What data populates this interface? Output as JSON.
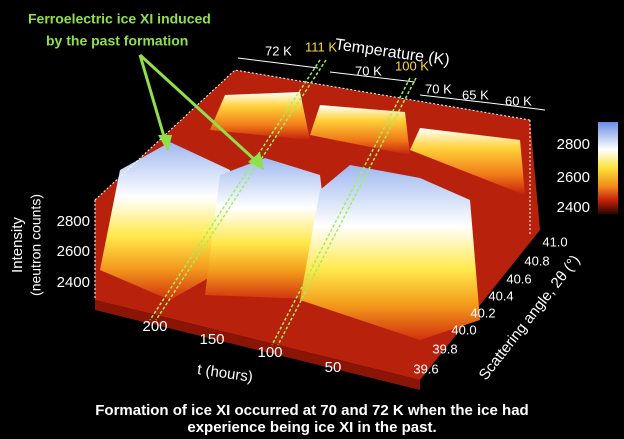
{
  "annotation": [
    "Ferroelectric ice XI induced",
    "by the past formation"
  ],
  "temperature": {
    "title": "Temperature (K)",
    "segments": [
      "72 K",
      "111 K",
      "70 K",
      "100 K",
      "70 K",
      "65 K",
      "60 K"
    ]
  },
  "colorbar": {
    "ticks": [
      2800,
      2600,
      2400
    ]
  },
  "intensity": {
    "title": "Intensity",
    "unit": "(neutron counts)",
    "ticks": [
      2800,
      2600,
      2400
    ]
  },
  "time": {
    "title": "t (hours)",
    "ticks": [
      200,
      150,
      100,
      50
    ]
  },
  "angle": {
    "title": "Scattering angle, 2θ (°)",
    "ticks": [
      "41.0",
      "40.8",
      "40.6",
      "40.4",
      "40.2",
      "40.0",
      "39.8",
      "39.6"
    ]
  },
  "caption": [
    "Formation of ice XI occurred at 70 and 72 K when the ice had",
    "experience being ice XI in the past."
  ]
}
